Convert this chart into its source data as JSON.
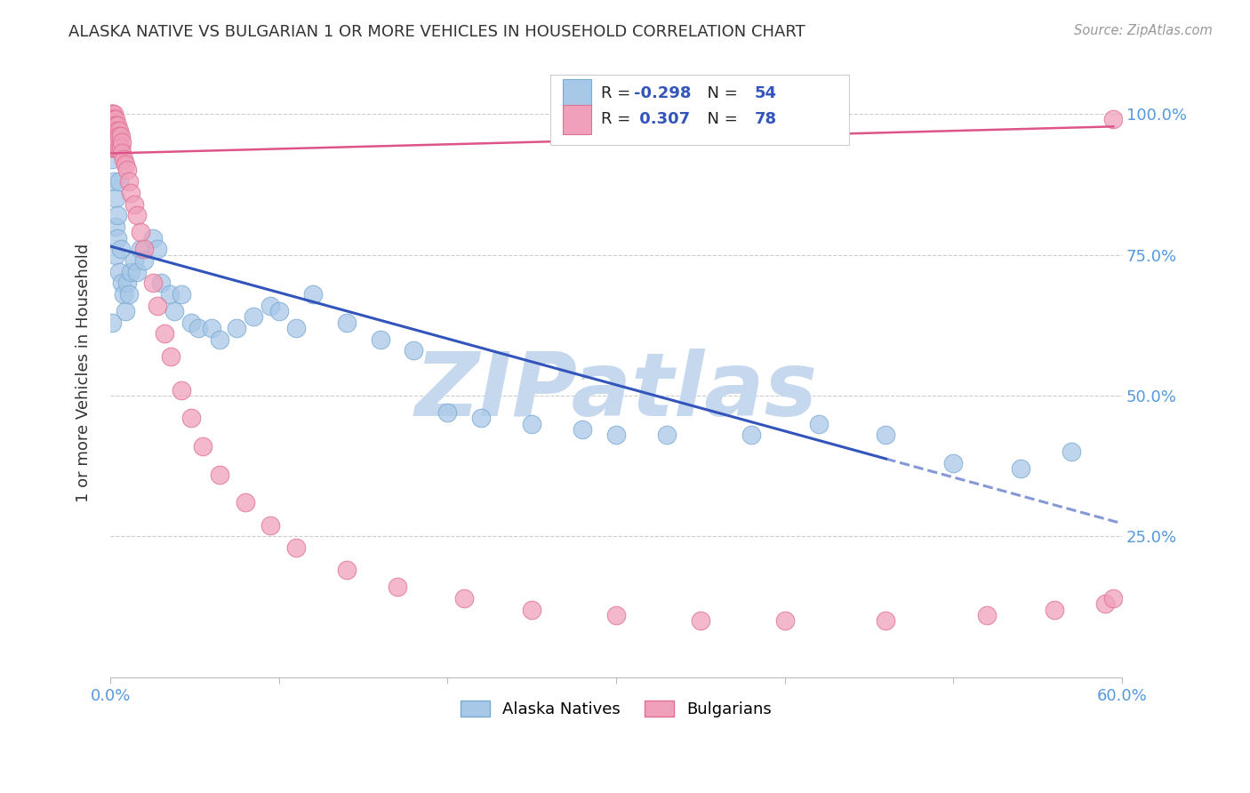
{
  "title": "ALASKA NATIVE VS BULGARIAN 1 OR MORE VEHICLES IN HOUSEHOLD CORRELATION CHART",
  "source": "Source: ZipAtlas.com",
  "ylabel": "1 or more Vehicles in Household",
  "xlim": [
    0.0,
    0.6
  ],
  "ylim": [
    0.0,
    1.08
  ],
  "ytick_positions": [
    0.0,
    0.25,
    0.5,
    0.75,
    1.0
  ],
  "ytick_labels": [
    "",
    "25.0%",
    "50.0%",
    "75.0%",
    "100.0%"
  ],
  "xtick_positions": [
    0.0,
    0.1,
    0.2,
    0.3,
    0.4,
    0.5,
    0.6
  ],
  "alaska_color": "#A8C8E8",
  "bulgarian_color": "#F0A0BB",
  "alaska_edge": "#7AAAD0",
  "bulgarian_edge": "#E07090",
  "trend_blue": "#3355BB",
  "trend_pink": "#DD5588",
  "watermark": "ZIPatlas",
  "watermark_color": "#C5D8EE",
  "legend_r1_label": "R = ",
  "legend_r1_val": "-0.298",
  "legend_n1_label": "N = ",
  "legend_n1_val": "54",
  "legend_r2_label": "R = ",
  "legend_r2_val": " 0.307",
  "legend_n2_label": "N = ",
  "legend_n2_val": "78",
  "alaska_x": [
    0.001,
    0.001,
    0.002,
    0.002,
    0.003,
    0.003,
    0.003,
    0.004,
    0.004,
    0.005,
    0.005,
    0.006,
    0.007,
    0.008,
    0.009,
    0.01,
    0.011,
    0.012,
    0.014,
    0.016,
    0.018,
    0.02,
    0.025,
    0.028,
    0.03,
    0.035,
    0.038,
    0.042,
    0.048,
    0.052,
    0.06,
    0.065,
    0.075,
    0.085,
    0.095,
    0.1,
    0.11,
    0.12,
    0.14,
    0.16,
    0.18,
    0.2,
    0.22,
    0.25,
    0.28,
    0.3,
    0.33,
    0.38,
    0.42,
    0.46,
    0.5,
    0.54,
    0.57,
    0.001
  ],
  "alaska_y": [
    0.97,
    0.92,
    0.95,
    0.88,
    0.85,
    0.8,
    0.75,
    0.82,
    0.78,
    0.88,
    0.72,
    0.76,
    0.7,
    0.68,
    0.65,
    0.7,
    0.68,
    0.72,
    0.74,
    0.72,
    0.76,
    0.74,
    0.78,
    0.76,
    0.7,
    0.68,
    0.65,
    0.68,
    0.63,
    0.62,
    0.62,
    0.6,
    0.62,
    0.64,
    0.66,
    0.65,
    0.62,
    0.68,
    0.63,
    0.6,
    0.58,
    0.47,
    0.46,
    0.45,
    0.44,
    0.43,
    0.43,
    0.43,
    0.45,
    0.43,
    0.38,
    0.37,
    0.4,
    0.63
  ],
  "bulgarian_x": [
    0.001,
    0.001,
    0.001,
    0.001,
    0.001,
    0.001,
    0.001,
    0.001,
    0.001,
    0.001,
    0.001,
    0.001,
    0.001,
    0.001,
    0.001,
    0.001,
    0.001,
    0.002,
    0.002,
    0.002,
    0.002,
    0.002,
    0.002,
    0.002,
    0.002,
    0.002,
    0.002,
    0.003,
    0.003,
    0.003,
    0.003,
    0.003,
    0.003,
    0.003,
    0.004,
    0.004,
    0.004,
    0.004,
    0.005,
    0.005,
    0.005,
    0.006,
    0.006,
    0.007,
    0.007,
    0.008,
    0.009,
    0.01,
    0.011,
    0.012,
    0.014,
    0.016,
    0.018,
    0.02,
    0.025,
    0.028,
    0.032,
    0.036,
    0.042,
    0.048,
    0.055,
    0.065,
    0.08,
    0.095,
    0.11,
    0.14,
    0.17,
    0.21,
    0.25,
    0.3,
    0.35,
    0.4,
    0.46,
    0.52,
    0.56,
    0.59,
    0.595,
    0.595
  ],
  "bulgarian_y": [
    1.0,
    1.0,
    1.0,
    1.0,
    0.99,
    0.99,
    0.99,
    0.98,
    0.98,
    0.97,
    0.97,
    0.96,
    0.96,
    0.95,
    0.95,
    0.94,
    0.94,
    1.0,
    0.99,
    0.99,
    0.98,
    0.98,
    0.97,
    0.97,
    0.96,
    0.95,
    0.94,
    0.99,
    0.98,
    0.98,
    0.97,
    0.96,
    0.95,
    0.94,
    0.98,
    0.97,
    0.96,
    0.95,
    0.97,
    0.96,
    0.94,
    0.96,
    0.94,
    0.95,
    0.93,
    0.92,
    0.91,
    0.9,
    0.88,
    0.86,
    0.84,
    0.82,
    0.79,
    0.76,
    0.7,
    0.66,
    0.61,
    0.57,
    0.51,
    0.46,
    0.41,
    0.36,
    0.31,
    0.27,
    0.23,
    0.19,
    0.16,
    0.14,
    0.12,
    0.11,
    0.1,
    0.1,
    0.1,
    0.11,
    0.12,
    0.13,
    0.14,
    0.99
  ]
}
